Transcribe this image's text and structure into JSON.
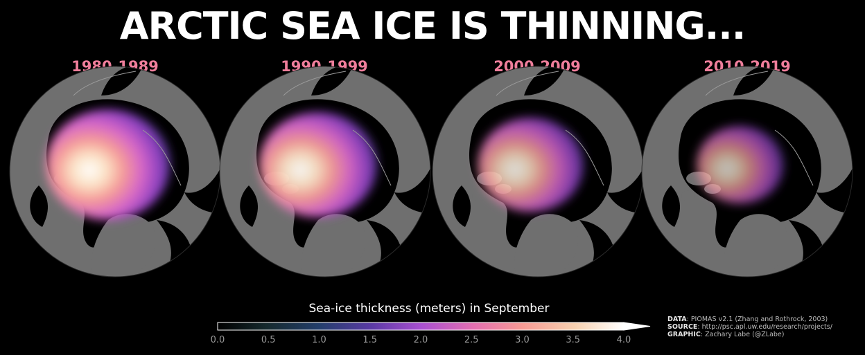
{
  "title": "ARCTIC SEA ICE IS THINNING...",
  "panels": [
    {
      "label": "1980-1989",
      "ice_extent": 1.0,
      "ice_peak": 1.0
    },
    {
      "label": "1990-1999",
      "ice_extent": 0.95,
      "ice_peak": 0.92
    },
    {
      "label": "2000-2009",
      "ice_extent": 0.85,
      "ice_peak": 0.7
    },
    {
      "label": "2010-2019",
      "ice_extent": 0.7,
      "ice_peak": 0.45
    }
  ],
  "colorbar": {
    "title": "Sea-ice thickness (meters) in September",
    "ticks": [
      "0.0",
      "0.5",
      "1.0",
      "1.5",
      "2.0",
      "2.5",
      "3.0",
      "3.5",
      "4.0"
    ],
    "min": 0.0,
    "max": 4.0,
    "extend": "max",
    "colors": [
      "#000000",
      "#152a2e",
      "#233e6b",
      "#5b3aa5",
      "#a84fd0",
      "#e36fb0",
      "#f79a94",
      "#f7d1b0",
      "#ffffff"
    ]
  },
  "colors": {
    "land": "#6f6f6f",
    "ocean": "#000000",
    "coastline": "#9a9a9a",
    "title": "#ffffff",
    "decade_label": "#ef7e9b"
  },
  "credits": {
    "data_label": "DATA",
    "data_text": ": PIOMAS v2.1 (Zhang and Rothrock, 2003)",
    "source_label": "SOURCE",
    "source_text": ": http://psc.apl.uw.edu/research/projects/",
    "graphic_label": "GRAPHIC",
    "graphic_text": ": Zachary Labe (@ZLabe)"
  }
}
